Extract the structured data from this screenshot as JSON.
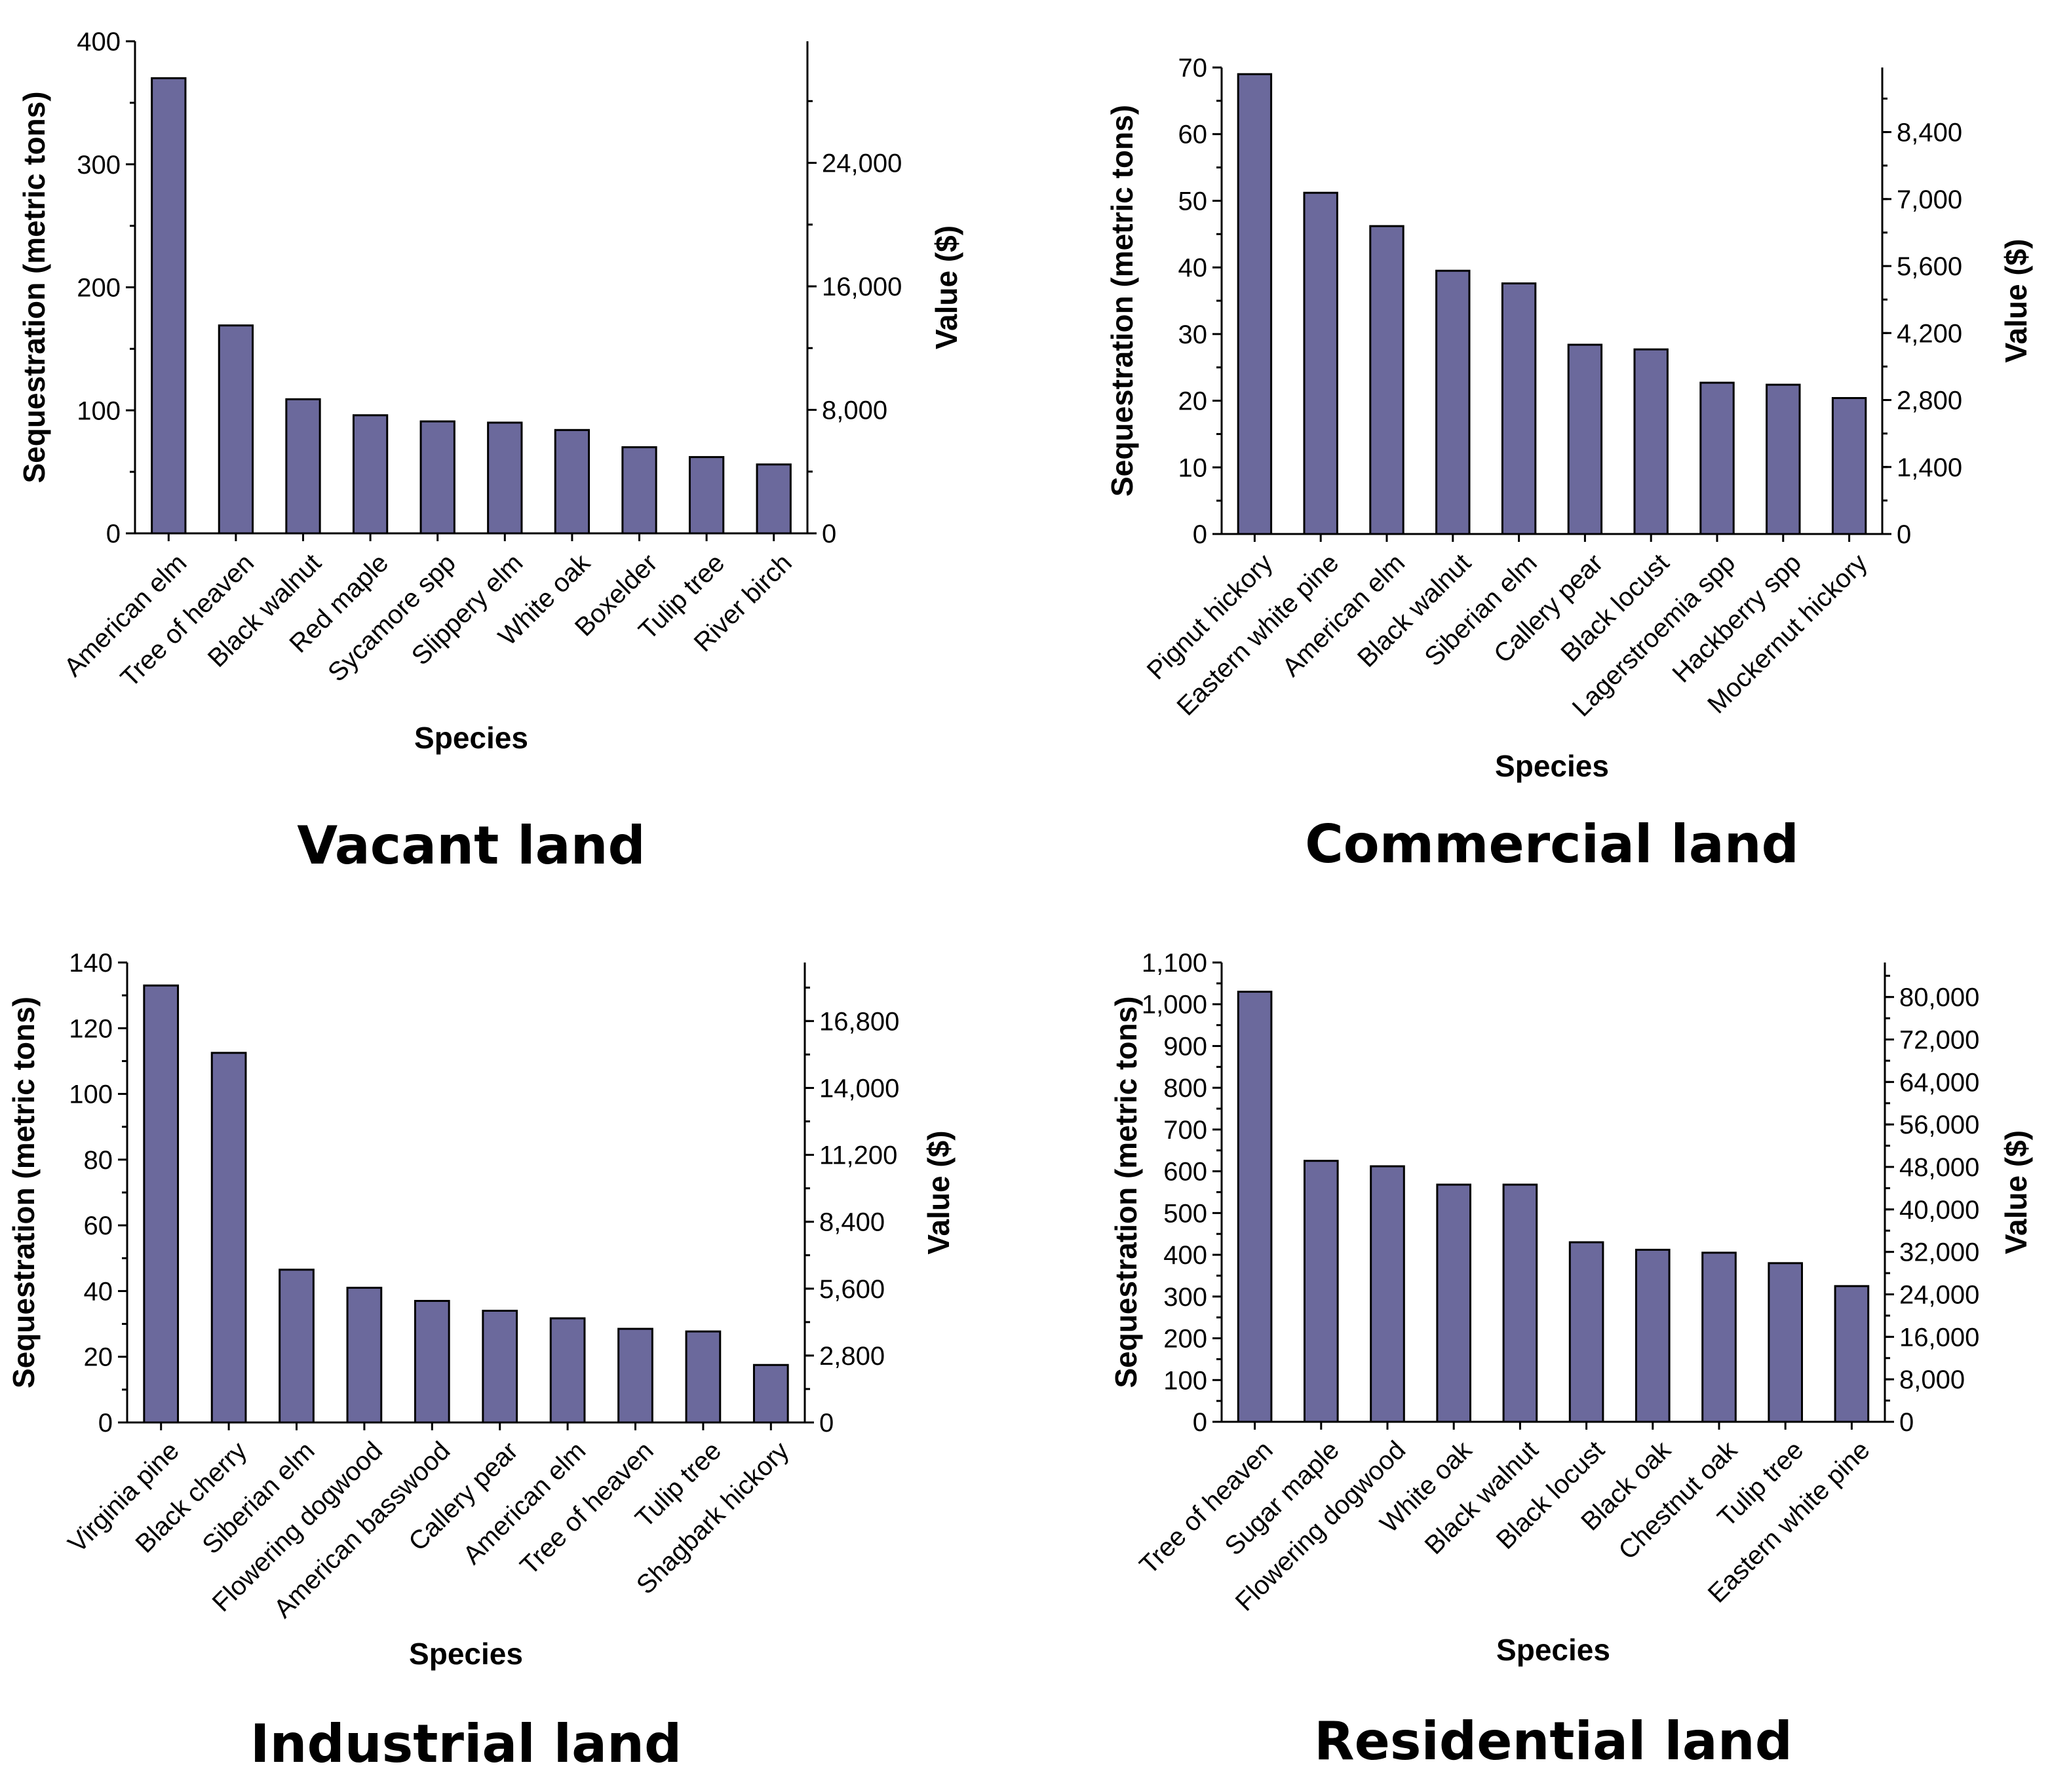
{
  "chart_data": [
    {
      "type": "bar",
      "title": "Vacant land",
      "xlabel": "Species",
      "ylabel": "Sequestration (metric tons)",
      "y2label": "Value ($)",
      "ylim": [
        0,
        400
      ],
      "yticks": [
        "0",
        "100",
        "200",
        "300",
        "400"
      ],
      "y2lim": [
        0,
        31875
      ],
      "y2ticks": [
        "0",
        "8,000",
        "16,000",
        "24,000"
      ],
      "categories": [
        "American elm",
        "Tree of heaven",
        "Black walnut",
        "Red maple",
        "Sycamore spp",
        "Slippery elm",
        "White oak",
        "Boxelder",
        "Tulip tree",
        "River birch"
      ],
      "values": [
        370,
        169,
        109,
        96,
        91,
        90,
        84,
        70,
        62,
        56
      ],
      "bar_color": "#6b699c"
    },
    {
      "type": "bar",
      "title": "Commercial land",
      "xlabel": "Species",
      "ylabel": "Sequestration (metric tons)",
      "y2label": "Value ($)",
      "ylim": [
        0,
        70
      ],
      "yticks": [
        "0",
        "10",
        "20",
        "30",
        "40",
        "50",
        "60",
        "70"
      ],
      "y2lim": [
        0,
        9750
      ],
      "y2ticks": [
        "0",
        "1,400",
        "2,800",
        "4,200",
        "5,600",
        "7,000",
        "8,400"
      ],
      "categories": [
        "Pignut hickory",
        "Eastern white pine",
        "American elm",
        "Black walnut",
        "Siberian elm",
        "Callery pear",
        "Black locust",
        "Lagerstroemia spp",
        "Hackberry spp",
        "Mockernut hickory"
      ],
      "values": [
        69,
        51.2,
        46.2,
        39.5,
        37.6,
        28.4,
        27.7,
        22.7,
        22.4,
        20.4
      ],
      "bar_color": "#6b699c"
    },
    {
      "type": "bar",
      "title": "Industrial land",
      "xlabel": "Species",
      "ylabel": "Sequestration (metric tons)",
      "y2label": "Value ($)",
      "ylim": [
        0,
        140
      ],
      "yticks": [
        "0",
        "20",
        "40",
        "60",
        "80",
        "100",
        "120",
        "140"
      ],
      "y2lim": [
        0,
        19250
      ],
      "y2ticks": [
        "0",
        "2,800",
        "5,600",
        "8,400",
        "11,200",
        "14,000",
        "16,800"
      ],
      "categories": [
        "Virginia pine",
        "Black cherry",
        "Siberian elm",
        "Flowering dogwood",
        "American basswood",
        "Callery pear",
        "American elm",
        "Tree of heaven",
        "Tulip tree",
        "Shagbark hickory"
      ],
      "values": [
        133,
        112.5,
        46.5,
        41,
        37,
        34,
        31.7,
        28.5,
        27.7,
        17.5
      ],
      "bar_color": "#6b699c"
    },
    {
      "type": "bar",
      "title": "Residential land",
      "xlabel": "Species",
      "ylabel": "Sequestration (metric tons)",
      "y2label": "Value ($)",
      "ylim": [
        0,
        1100
      ],
      "yticks": [
        "0",
        "100",
        "200",
        "300",
        "400",
        "500",
        "600",
        "700",
        "800",
        "900",
        "1,000",
        "1,100"
      ],
      "y2lim": [
        0,
        86500
      ],
      "y2ticks": [
        "0",
        "8,000",
        "16,000",
        "24,000",
        "32,000",
        "40,000",
        "48,000",
        "56,000",
        "64,000",
        "72,000",
        "80,000"
      ],
      "categories": [
        "Tree of heaven",
        "Sugar maple",
        "Flowering dogwood",
        "White oak",
        "Black walnut",
        "Black locust",
        "Black oak",
        "Chestnut oak",
        "Tulip tree",
        "Eastern white pine"
      ],
      "values": [
        1030,
        625,
        612,
        568,
        568,
        430,
        412,
        405,
        380,
        325
      ],
      "bar_color": "#6b699c"
    }
  ]
}
